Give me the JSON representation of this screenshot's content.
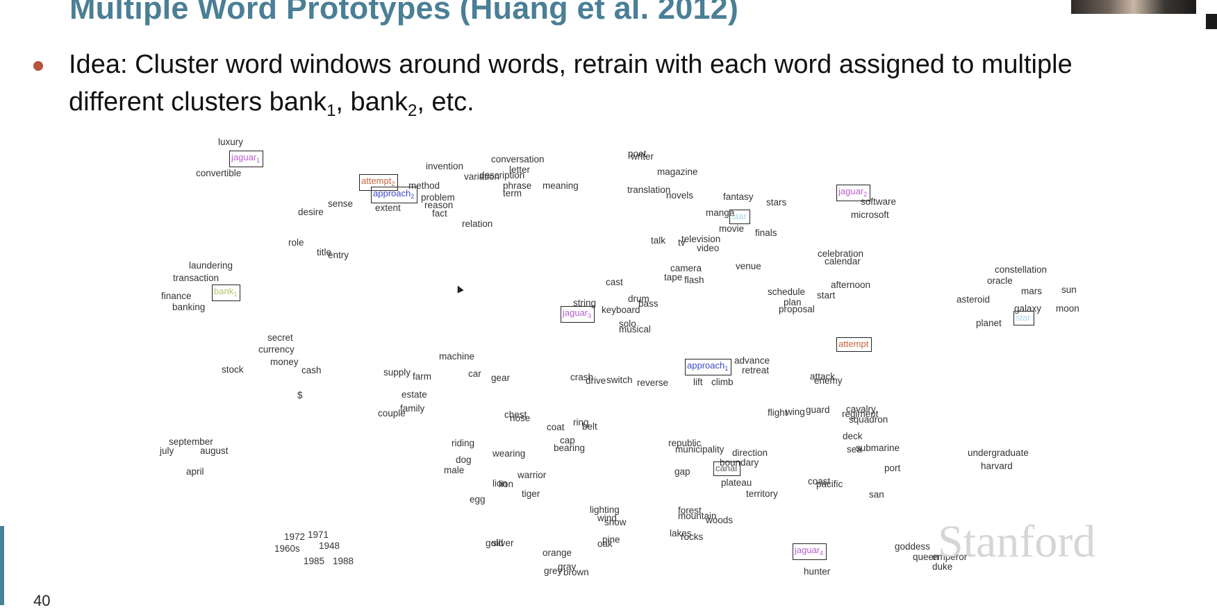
{
  "slide": {
    "title": "Multiple Word Prototypes (Huang et al. 2012)",
    "bullet_line1": "Idea: Cluster word windows around words, retrain with each word assigned to multiple",
    "bullet_line2_text": "different clusters bank",
    "bank_sub_1": "1",
    "bank_sep": ", bank",
    "bank_sub_2": "2",
    "bullet_line2_end": ", etc.",
    "page_number": "40",
    "watermark": "Stanford"
  },
  "plot_words": [
    "luxury",
    "convertible",
    "invention",
    "conversation",
    "letter",
    "variation",
    "description",
    "method",
    "phrase",
    "term",
    "meaning",
    "problem",
    "reason",
    "fact",
    "sense",
    "desire",
    "extent",
    "relation",
    "poet",
    "writer",
    "magazine",
    "translation",
    "novels",
    "fantasy",
    "stars",
    "manga",
    "movie",
    "finals",
    "software",
    "microsoft",
    "talk",
    "tv",
    "television",
    "video",
    "venue",
    "celebration",
    "calendar",
    "role",
    "title",
    "entry",
    "laundering",
    "transaction",
    "finance",
    "banking",
    "camera",
    "tape",
    "flash",
    "cast",
    "afternoon",
    "constellation",
    "oracle",
    "mars",
    "sun",
    "asteroid",
    "galaxy",
    "moon",
    "planet",
    "schedule",
    "start",
    "plan",
    "proposal",
    "string",
    "keyboard",
    "drum",
    "bass",
    "solo",
    "musical",
    "secret",
    "currency",
    "money",
    "cash",
    "stock",
    "$",
    "machine",
    "supply",
    "farm",
    "car",
    "gear",
    "estate",
    "couple",
    "family",
    "crash",
    "drive",
    "switch",
    "reverse",
    "advance",
    "retreat",
    "lift",
    "climb",
    "attack",
    "enemy",
    "flight",
    "wing",
    "guard",
    "cavalry",
    "regiment",
    "squadron",
    "chest",
    "nose",
    "coat",
    "ring",
    "belt",
    "cap",
    "bearing",
    "riding",
    "dog",
    "male",
    "wearing",
    "warrior",
    "lion",
    "lion",
    "tiger",
    "egg",
    "september",
    "july",
    "august",
    "april",
    "republic",
    "municipality",
    "direction",
    "boundary",
    "gap",
    "plateau",
    "territory",
    "deck",
    "sea",
    "submarine",
    "port",
    "undergraduate",
    "harvard",
    "coast",
    "pacific",
    "san",
    "lighting",
    "wind",
    "snow",
    "forest",
    "mountain",
    "woods",
    "lakes",
    "rocks",
    "1972",
    "1971",
    "1960s",
    "1948",
    "1985",
    "1988",
    "gold",
    "silver",
    "orange",
    "pine",
    "oak",
    "gray",
    "grey",
    "brown",
    "goddess",
    "queen",
    "emperor",
    "duke",
    "hunter"
  ],
  "boxed_words": [
    {
      "word": "jaguar",
      "sub": "1",
      "color": "#b85fd0"
    },
    {
      "word": "attempt",
      "sub": "2",
      "color": "#c9623b"
    },
    {
      "word": "approach",
      "sub": "2",
      "color": "#3b48c9"
    },
    {
      "word": "jaguar",
      "sub": "2",
      "color": "#b85fd0"
    },
    {
      "word": "star",
      "sub": "",
      "color": "#a8d8ea"
    },
    {
      "word": "bank",
      "sub": "1",
      "color": "#b4c86a"
    },
    {
      "word": "jaguar",
      "sub": "3",
      "color": "#b85fd0"
    },
    {
      "word": "star",
      "sub": "",
      "color": "#a8d8ea"
    },
    {
      "word": "attempt",
      "sub": "",
      "color": "#c9623b"
    },
    {
      "word": "approach",
      "sub": "1",
      "color": "#3b48c9"
    },
    {
      "word": "canal",
      "sub": "",
      "color": "#5a5a5a"
    },
    {
      "word": "jaguar",
      "sub": "4",
      "color": "#b85fd0"
    }
  ]
}
